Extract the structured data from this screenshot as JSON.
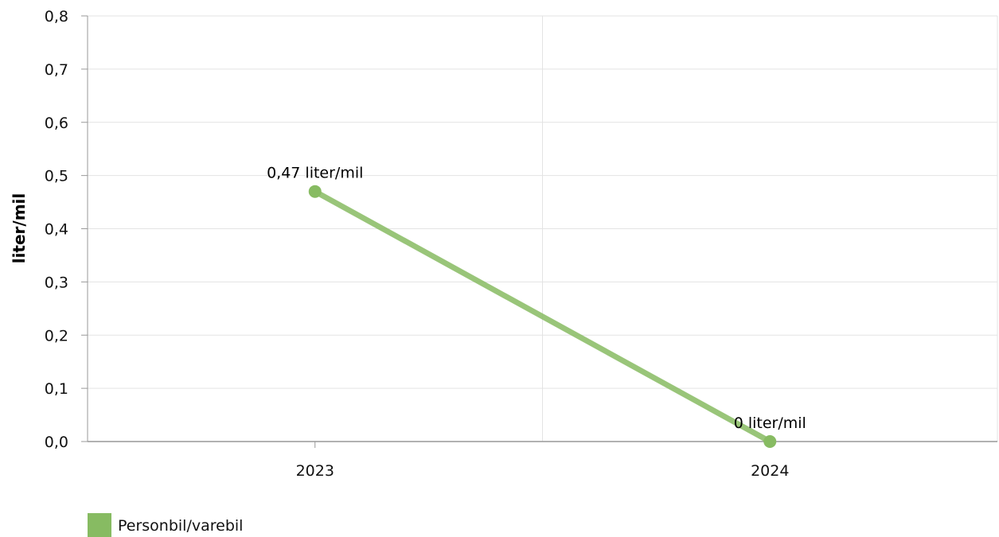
{
  "chart_data": {
    "type": "line",
    "title": "",
    "xlabel": "",
    "ylabel": "liter/mil",
    "categories": [
      "2023",
      "2024"
    ],
    "ylim": [
      0,
      0.8
    ],
    "yticks": [
      "0,0",
      "0,1",
      "0,2",
      "0,3",
      "0,4",
      "0,5",
      "0,6",
      "0,7",
      "0,8"
    ],
    "grid": true,
    "legend_position": "bottom-left",
    "series": [
      {
        "name": "Personbil/varebil",
        "color": "#87bb62",
        "values": [
          0.47,
          0
        ],
        "labels": [
          "0,47 liter/mil",
          "0 liter/mil"
        ]
      }
    ]
  }
}
